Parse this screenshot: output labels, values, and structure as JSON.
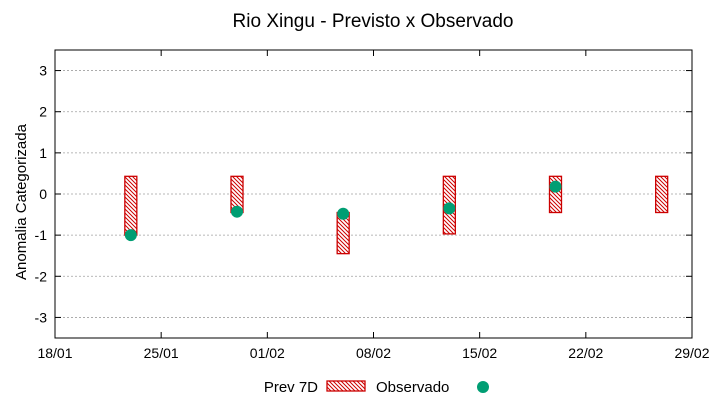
{
  "chart_data": {
    "type": "range-bar-scatter",
    "title": "Rio Xingu - Previsto x Observado",
    "xlabel": "",
    "ylabel": "Anomalia Categorizada",
    "ylim": [
      -3.5,
      3.5
    ],
    "yticks": [
      -3,
      -2,
      -1,
      0,
      1,
      2,
      3
    ],
    "xlim_days": [
      0,
      42
    ],
    "xticks": [
      {
        "day": 0,
        "label": "18/01"
      },
      {
        "day": 7,
        "label": "25/01"
      },
      {
        "day": 14,
        "label": "01/02"
      },
      {
        "day": 21,
        "label": "08/02"
      },
      {
        "day": 28,
        "label": "15/02"
      },
      {
        "day": 35,
        "label": "22/02"
      },
      {
        "day": 42,
        "label": "29/02"
      }
    ],
    "grid": true,
    "legend_position": "bottom",
    "series": [
      {
        "name": "Prev 7D",
        "kind": "range",
        "color": "#cc0000",
        "points": [
          {
            "day": 5,
            "low": -1.0,
            "high": 0.43
          },
          {
            "day": 12,
            "low": -0.45,
            "high": 0.43
          },
          {
            "day": 19,
            "low": -1.45,
            "high": -0.45
          },
          {
            "day": 26,
            "low": -0.97,
            "high": 0.43
          },
          {
            "day": 33,
            "low": -0.45,
            "high": 0.43
          },
          {
            "day": 40,
            "low": -0.45,
            "high": 0.43
          }
        ]
      },
      {
        "name": "Observado",
        "kind": "point",
        "color": "#009e73",
        "points": [
          {
            "day": 5,
            "value": -1.0
          },
          {
            "day": 12,
            "value": -0.43
          },
          {
            "day": 19,
            "value": -0.48
          },
          {
            "day": 26,
            "value": -0.35
          },
          {
            "day": 33,
            "value": 0.18
          }
        ]
      }
    ]
  }
}
